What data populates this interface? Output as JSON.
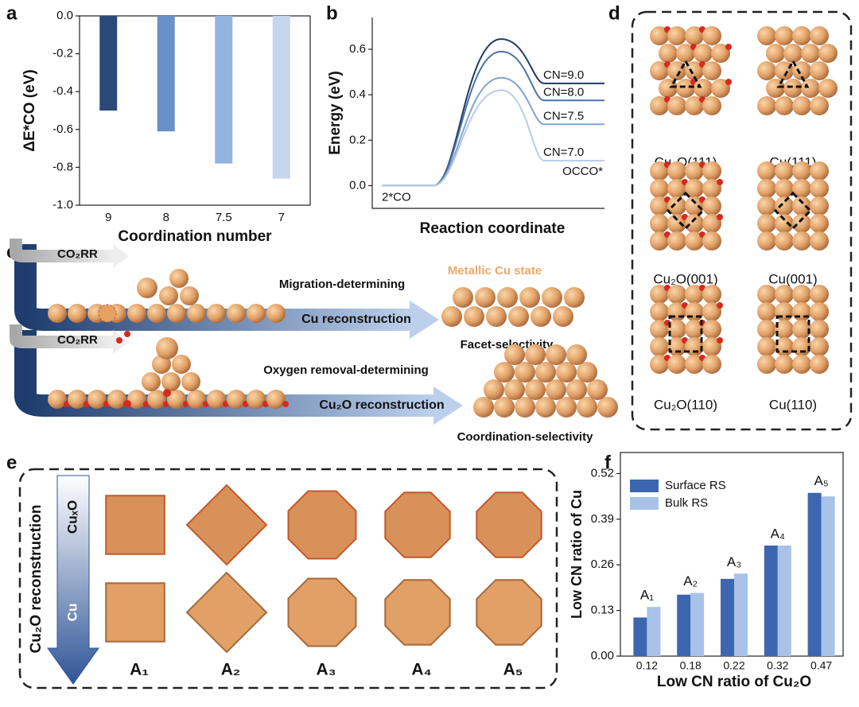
{
  "panel_labels": [
    "a",
    "b",
    "c",
    "d",
    "e",
    "f"
  ],
  "chart_data": [
    {
      "type": "bar",
      "x_label": "Coordination number",
      "y_label": "ΔE*CO (eV)",
      "categories": [
        "9",
        "8",
        "7.5",
        "7"
      ],
      "values": [
        -0.5,
        -0.61,
        -0.78,
        -0.86
      ],
      "colors": [
        "#2b4878",
        "#6a90c8",
        "#93b3df",
        "#c6d6ef"
      ],
      "ylim": [
        -1.0,
        0.0
      ],
      "yticks": [
        {
          "value": 0,
          "label": "0.0"
        },
        -0.2,
        -0.4,
        -0.6,
        -0.8,
        {
          "value": -1,
          "label": "-1.0"
        }
      ]
    },
    {
      "type": "line",
      "x_label": "Reaction coordinate",
      "y_label": "Energy (eV)",
      "categories": [
        "2*CO",
        null,
        "OCCO*"
      ],
      "series": [
        {
          "name": "CN=9.0",
          "color": "#1f3a66",
          "values": [
            0,
            0.645,
            0.45
          ]
        },
        {
          "name": "CN=8.0",
          "color": "#4d72a8",
          "values": [
            0,
            0.59,
            0.375
          ]
        },
        {
          "name": "CN=7.5",
          "color": "#81a4d0",
          "values": [
            0,
            0.475,
            0.27
          ]
        },
        {
          "name": "CN=7.0",
          "color": "#b9cde8",
          "values": [
            0,
            0.42,
            0.11
          ]
        }
      ],
      "ylim": [
        -0.1,
        0.74
      ],
      "yticks": [
        {
          "value": 0,
          "label": "0.0"
        },
        0.2,
        0.4,
        0.6
      ]
    },
    {
      "type": "grouped-bar",
      "x_label": "Low CN ratio of Cu₂O",
      "y_label": "Low CN ratio of Cu",
      "categories": [
        "0.12",
        "0.18",
        "0.22",
        "0.32",
        "0.47"
      ],
      "series": [
        {
          "name": "Surface RS",
          "color": "#3d66b0",
          "values": [
            0.11,
            0.175,
            0.22,
            0.315,
            0.465
          ]
        },
        {
          "name": "Bulk RS",
          "color": "#a8c2e8",
          "values": [
            0.14,
            0.18,
            0.235,
            0.315,
            0.455
          ]
        }
      ],
      "bar_labels": [
        "A₁",
        "A₂",
        "A₃",
        "A₄",
        "A₅"
      ],
      "ylim": [
        0,
        0.58
      ],
      "yticks": [
        {
          "value": 0,
          "label": "0.00"
        },
        0.13,
        0.26,
        0.39,
        0.52
      ],
      "legend": "upper left"
    }
  ],
  "panel_c": {
    "state": "Metallic Cu state",
    "rows": [
      {
        "input": "CO₂RR",
        "process": "Migration-determining",
        "arrow": "Cu reconstruction",
        "outcome": "Facet-selectivity"
      },
      {
        "input": "CO₂RR",
        "process": "Oxygen removal-determining",
        "arrow": "Cu₂O reconstruction",
        "outcome": "Coordination-selectivity"
      }
    ]
  },
  "panel_d": {
    "structures": [
      "Cu₂O(111)",
      "Cu(111)",
      "Cu₂O(001)",
      "Cu(001)",
      "Cu₂O(110)",
      "Cu(110)"
    ]
  },
  "panel_e": {
    "arrow_title": "Cu₂O reconstruction",
    "arrow_top": "CuₓO",
    "arrow_bottom": "Cu",
    "models": [
      "A₁",
      "A₂",
      "A₃",
      "A₄",
      "A₅"
    ]
  }
}
